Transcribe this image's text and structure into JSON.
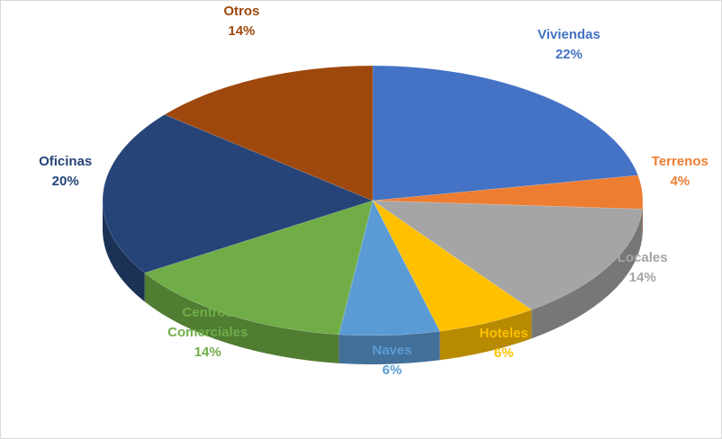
{
  "chart_data": {
    "type": "pie",
    "categories": [
      "Viviendas",
      "Terrenos",
      "Locales",
      "Hoteles",
      "Naves",
      "Centros Comerciales",
      "Oficinas",
      "Otros"
    ],
    "values": [
      22,
      4,
      14,
      6,
      6,
      14,
      20,
      14
    ],
    "value_labels": [
      "22%",
      "4%",
      "14%",
      "6%",
      "6%",
      "14%",
      "20%",
      "14%"
    ],
    "colors": [
      "#4472c4",
      "#ed7d31",
      "#a5a5a5",
      "#ffc000",
      "#5b9bd5",
      "#70ad47",
      "#264478",
      "#9e480e"
    ]
  }
}
